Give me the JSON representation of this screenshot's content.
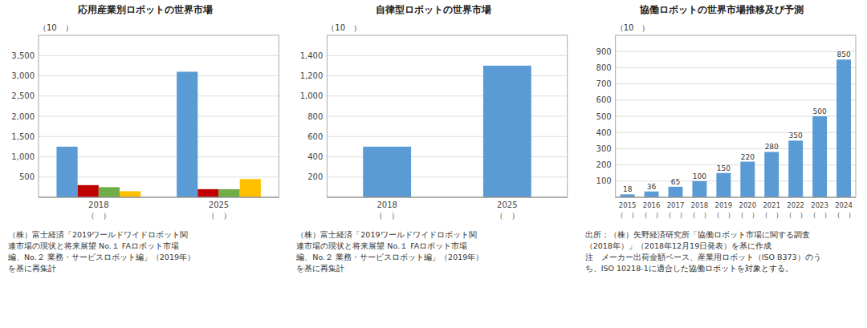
{
  "chart_data": [
    {
      "type": "bar",
      "title": "応用産業別ロボットの世界市場",
      "ylabel": "（10　）",
      "categories": [
        "2018\n（　）",
        "2025\n（　）"
      ],
      "series": [
        {
          "color": "#5b9bd5",
          "values": [
            1250,
            3100
          ]
        },
        {
          "color": "#c00000",
          "values": [
            300,
            200
          ]
        },
        {
          "color": "#70ad47",
          "values": [
            250,
            200
          ]
        },
        {
          "color": "#ffc000",
          "values": [
            150,
            450
          ]
        }
      ],
      "ylim": [
        0,
        4000
      ],
      "yticks": [
        500,
        {
          "value": 1000,
          "label": "1,000"
        },
        {
          "value": 1500,
          "label": "1,500"
        },
        {
          "value": 2000,
          "label": "2,000"
        },
        {
          "value": 2500,
          "label": "2,500"
        },
        {
          "value": 3000,
          "label": "3,000"
        },
        {
          "value": 3500,
          "label": "3,500"
        }
      ],
      "grid": true,
      "annotations": [
        "（株）富士経済「2019ワールドワイドロボット関\n連市場の現状と将来展望 No.１ FAロボット市場\n編、No.２ 業務・サービスロボット編」（2019年）\nを基に再集計"
      ]
    },
    {
      "type": "bar",
      "title": "自律型ロボットの世界市場",
      "ylabel": "（10　）",
      "categories": [
        "2018\n（　）",
        "2025\n（　）"
      ],
      "values": [
        500,
        1300
      ],
      "color": "#5b9bd5",
      "ylim": [
        0,
        1600
      ],
      "yticks": [
        200,
        400,
        600,
        800,
        {
          "value": 1000,
          "label": "1,000"
        },
        {
          "value": 1200,
          "label": "1,200"
        },
        {
          "value": 1400,
          "label": "1,400"
        }
      ],
      "grid": true,
      "annotations": [
        "（株）富士経済「2019ワールドワイドロボット関\n連市場の現状と将来展望 No.１ FAロボット市場\n編、No.２ 業務・サービスロボット編」（2019年）\nを基に再集計"
      ]
    },
    {
      "type": "bar",
      "title": "協働ロボットの世界市場推移及び予測",
      "ylabel": "（10　）",
      "categories": [
        "2015\n（　）",
        "2016\n（　）",
        "2017\n（　）",
        "2018\n（　）",
        "2019\n（　）",
        "2020\n（　）",
        "2021\n（　）",
        "2022\n（　）",
        "2023\n（　）",
        "2024\n（　）"
      ],
      "values": [
        18,
        36,
        65,
        100,
        150,
        220,
        280,
        350,
        500,
        850
      ],
      "color": "#5b9bd5",
      "ylim": [
        0,
        1000
      ],
      "yticks": [
        100,
        200,
        300,
        400,
        500,
        600,
        700,
        800,
        900
      ],
      "grid": true,
      "data_labels": true,
      "annotations": [
        "出所：（株）矢野経済研究所「協働ロボット市場に関する調査\n（2018年）」（2018年12月19日発表）を基に作成\n注　メーカー出荷金額ベース、産業用ロボット（ISO B373）のう\nち、ISO 10218-1に適合した協働ロボットを対象とする。"
      ]
    }
  ]
}
